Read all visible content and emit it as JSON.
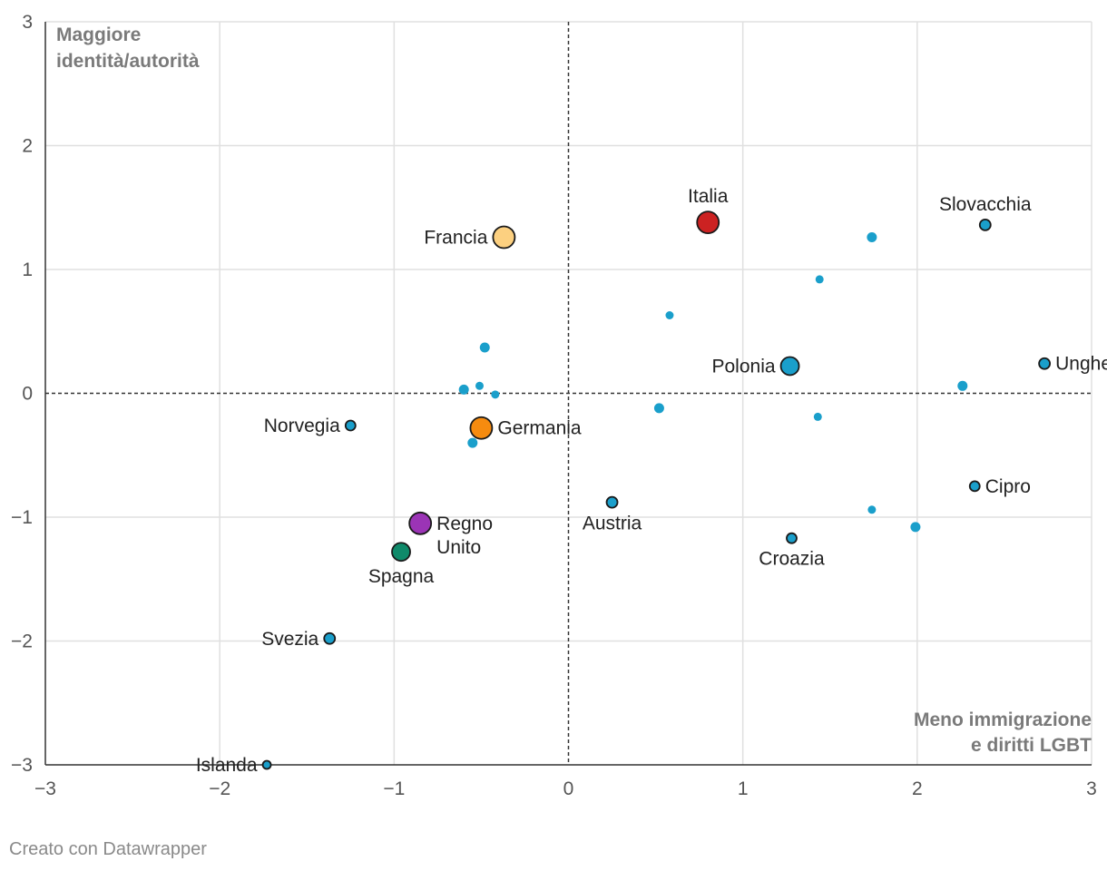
{
  "chart_data": {
    "type": "scatter",
    "xlim": [
      -3,
      3
    ],
    "ylim": [
      -3,
      3
    ],
    "x_ticks": [
      "−3",
      "−2",
      "−1",
      "0",
      "1",
      "2",
      "3"
    ],
    "y_ticks": [
      "3",
      "2",
      "1",
      "0",
      "−1",
      "−2",
      "−3"
    ],
    "corner_label_top_left": [
      "Maggiore",
      "identità/autorità"
    ],
    "corner_label_bottom_right": [
      "Meno immigrazione",
      "e diritti LGBT"
    ],
    "colors": {
      "default": "#1a9fcb",
      "Italia": "#cc2222",
      "Francia": "#fcd080",
      "Germania": "#f68b0f",
      "Regno Unito": "#9b34b6",
      "Spagna": "#0f8a6a"
    },
    "points": [
      {
        "name": "Italia",
        "x": 0.8,
        "y": 1.38,
        "size": "xl",
        "color": "#cc2222",
        "label": [
          "Italia"
        ],
        "label_pos": "above"
      },
      {
        "name": "Francia",
        "x": -0.37,
        "y": 1.26,
        "size": "xl",
        "color": "#fcd080",
        "label": [
          "Francia"
        ],
        "label_pos": "left"
      },
      {
        "name": "Germania",
        "x": -0.5,
        "y": -0.28,
        "size": "xl",
        "color": "#f68b0f",
        "label": [
          "Germania"
        ],
        "label_pos": "right"
      },
      {
        "name": "Regno Unito",
        "x": -0.85,
        "y": -1.05,
        "size": "xl",
        "color": "#9b34b6",
        "label": [
          "Regno",
          "Unito"
        ],
        "label_pos": "right"
      },
      {
        "name": "Spagna",
        "x": -0.96,
        "y": -1.28,
        "size": "lg",
        "color": "#0f8a6a",
        "label": [
          "Spagna"
        ],
        "label_pos": "below"
      },
      {
        "name": "Polonia",
        "x": 1.27,
        "y": 0.22,
        "size": "lg",
        "color": "#1a9fcb",
        "label": [
          "Polonia"
        ],
        "label_pos": "left"
      },
      {
        "name": "Slovacchia",
        "x": 2.39,
        "y": 1.36,
        "size": "md",
        "color": "#1a9fcb",
        "label": [
          "Slovacchia"
        ],
        "label_pos": "above"
      },
      {
        "name": "Ungheria",
        "x": 2.73,
        "y": 0.24,
        "size": "md",
        "color": "#1a9fcb",
        "label": [
          "Ungheria"
        ],
        "label_pos": "right"
      },
      {
        "name": "Norvegia",
        "x": -1.25,
        "y": -0.26,
        "size": "sm",
        "color": "#1a9fcb",
        "label": [
          "Norvegia"
        ],
        "label_pos": "left"
      },
      {
        "name": "Austria",
        "x": 0.25,
        "y": -0.88,
        "size": "md",
        "color": "#1a9fcb",
        "label": [
          "Austria"
        ],
        "label_pos": "below"
      },
      {
        "name": "Cipro",
        "x": 2.33,
        "y": -0.75,
        "size": "sm",
        "color": "#1a9fcb",
        "label": [
          "Cipro"
        ],
        "label_pos": "right"
      },
      {
        "name": "Croazia",
        "x": 1.28,
        "y": -1.17,
        "size": "sm",
        "color": "#1a9fcb",
        "label": [
          "Croazia"
        ],
        "label_pos": "below"
      },
      {
        "name": "Svezia",
        "x": -1.37,
        "y": -1.98,
        "size": "md",
        "color": "#1a9fcb",
        "label": [
          "Svezia"
        ],
        "label_pos": "left"
      },
      {
        "name": "Islanda",
        "x": -1.73,
        "y": -3.0,
        "size": "xs",
        "color": "#1a9fcb",
        "label": [
          "Islanda"
        ],
        "label_pos": "left"
      },
      {
        "name": "",
        "x": 1.74,
        "y": 1.26,
        "size": "u",
        "color": "#1a9fcb"
      },
      {
        "name": "",
        "x": 1.44,
        "y": 0.92,
        "size": "us",
        "color": "#1a9fcb"
      },
      {
        "name": "",
        "x": 0.58,
        "y": 0.63,
        "size": "us",
        "color": "#1a9fcb"
      },
      {
        "name": "",
        "x": -0.48,
        "y": 0.37,
        "size": "u",
        "color": "#1a9fcb"
      },
      {
        "name": "",
        "x": -0.6,
        "y": 0.03,
        "size": "u",
        "color": "#1a9fcb"
      },
      {
        "name": "",
        "x": -0.51,
        "y": 0.06,
        "size": "us",
        "color": "#1a9fcb"
      },
      {
        "name": "",
        "x": -0.42,
        "y": -0.01,
        "size": "us",
        "color": "#1a9fcb"
      },
      {
        "name": "",
        "x": 0.52,
        "y": -0.12,
        "size": "u",
        "color": "#1a9fcb"
      },
      {
        "name": "",
        "x": -0.55,
        "y": -0.4,
        "size": "u",
        "color": "#1a9fcb"
      },
      {
        "name": "",
        "x": 2.26,
        "y": 0.06,
        "size": "u",
        "color": "#1a9fcb"
      },
      {
        "name": "",
        "x": 1.43,
        "y": -0.19,
        "size": "us",
        "color": "#1a9fcb"
      },
      {
        "name": "",
        "x": 1.74,
        "y": -0.94,
        "size": "us",
        "color": "#1a9fcb"
      },
      {
        "name": "",
        "x": 1.99,
        "y": -1.08,
        "size": "u",
        "color": "#1a9fcb"
      }
    ]
  },
  "credit": "Creato con Datawrapper"
}
